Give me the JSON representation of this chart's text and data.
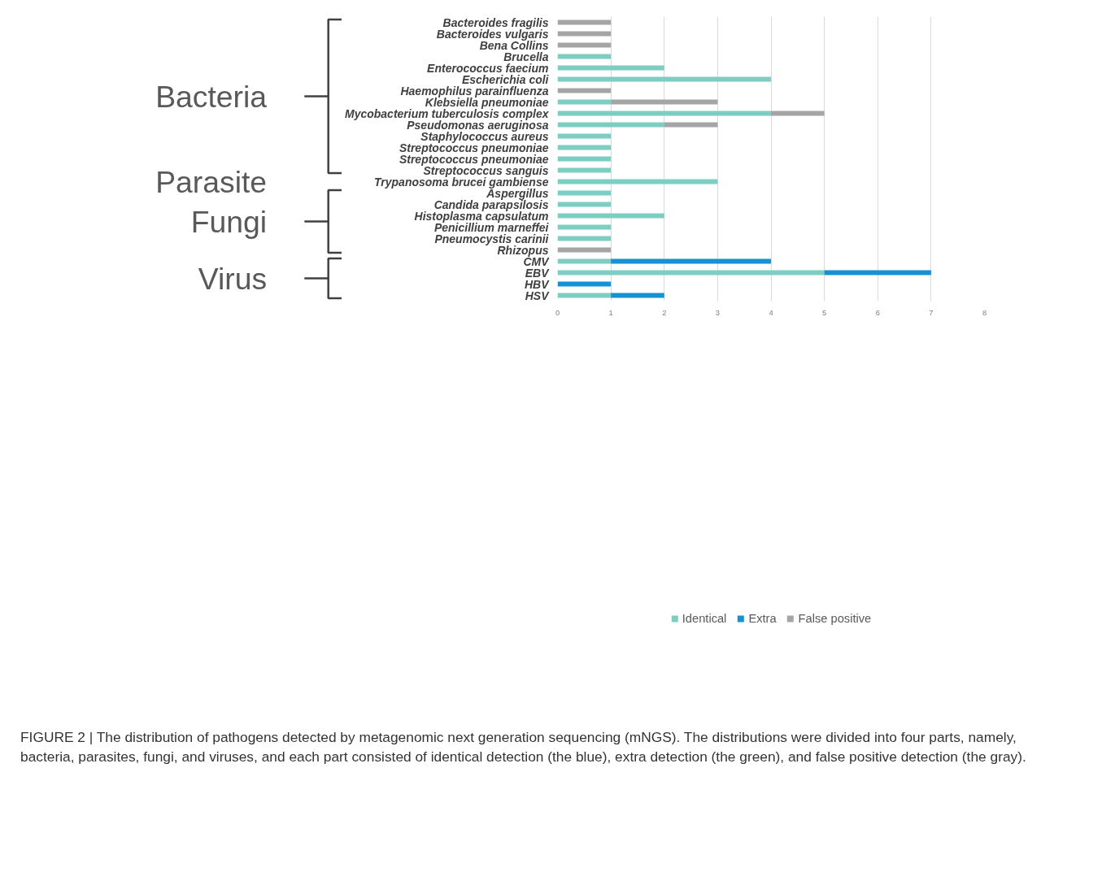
{
  "chart_data": {
    "type": "bar",
    "orientation": "horizontal",
    "stacked": true,
    "categories": [
      "Bacteroides fragilis",
      "Bacteroides vulgaris",
      "Bena Collins",
      "Brucella",
      "Enterococcus faecium",
      "Escherichia coli",
      "Haemophilus parainfluenza",
      "Klebsiella pneumoniae",
      "Mycobacterium tuberculosis complex",
      "Pseudomonas aeruginosa",
      "Staphylococcus aureus",
      "Streptococcus pneumoniae",
      "Streptococcus pneumoniae",
      "Streptococcus sanguis",
      "Trypanosoma brucei gambiense",
      "Aspergillus",
      "Candida parapsilosis",
      "Histoplasma capsulatum",
      "Penicillium marneffei",
      "Pneumocystis carinii",
      "Rhizopus",
      "CMV",
      "EBV",
      "HBV",
      "HSV"
    ],
    "series": [
      {
        "name": "Identical",
        "color": "#7dcdc3",
        "values": [
          null,
          null,
          null,
          1,
          2,
          4,
          null,
          1,
          4,
          2,
          1,
          1,
          1,
          1,
          3,
          1,
          1,
          2,
          1,
          1,
          null,
          1,
          5,
          null,
          1
        ]
      },
      {
        "name": "Extra",
        "color": "#1591d4",
        "values": [
          null,
          null,
          null,
          null,
          null,
          null,
          null,
          null,
          null,
          null,
          null,
          null,
          null,
          null,
          null,
          null,
          null,
          null,
          null,
          null,
          null,
          3,
          2,
          1,
          1
        ]
      },
      {
        "name": "False positive",
        "color": "#a5a5a5",
        "values": [
          1,
          1,
          1,
          null,
          null,
          null,
          1,
          2,
          1,
          1,
          null,
          null,
          null,
          null,
          null,
          null,
          null,
          null,
          null,
          null,
          1,
          null,
          null,
          null,
          null
        ]
      }
    ],
    "xlim": [
      0,
      8
    ],
    "xticks": [
      0,
      1,
      2,
      3,
      4,
      5,
      6,
      7,
      8
    ],
    "grid": "x",
    "legend": "bottom",
    "annotations": [
      "Bacteria",
      "Parasite",
      "Fungi",
      "Virus",
      "FIGURE 2 | The distribution of pathogens detected by metagenomic next generation sequencing (mNGS). The distributions were divided into four parts, namely, bacteria, parasites, fungi, and viruses, and each part consisted of identical detection (the blue), extra detection (the green), and false positive detection (the gray)."
    ]
  }
}
